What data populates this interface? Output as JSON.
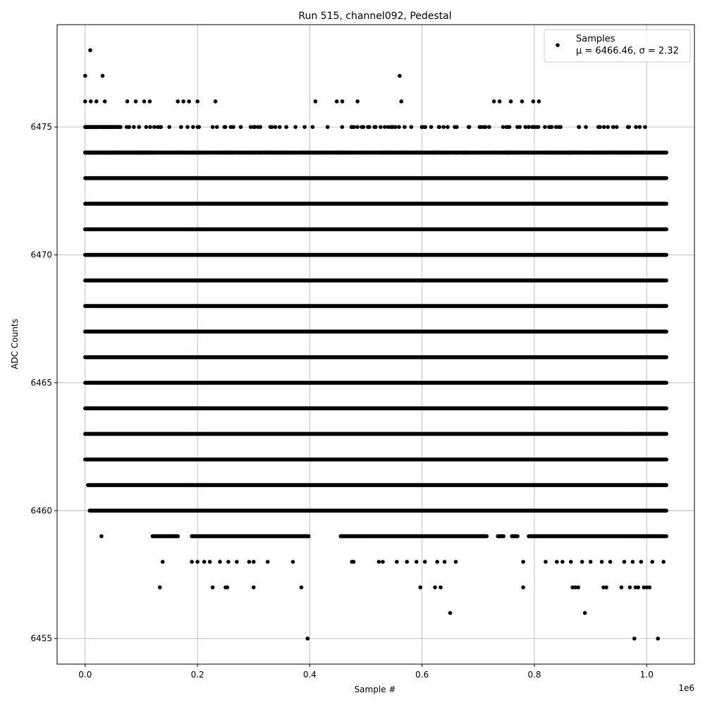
{
  "chart_data": {
    "type": "scatter",
    "title": "Run 515, channel092, Pedestal",
    "xlabel": "Sample #",
    "ylabel": "ADC Counts",
    "x_offset_label": "1e6",
    "xlim": [
      -50000,
      1085000
    ],
    "ylim": [
      6454,
      6479
    ],
    "x_ticks": [
      0.0,
      0.2,
      0.4,
      0.6,
      0.8,
      1.0
    ],
    "x_tick_labels": [
      "0.0",
      "0.2",
      "0.4",
      "0.6",
      "0.8",
      "1.0"
    ],
    "y_ticks": [
      6455,
      6460,
      6465,
      6470,
      6475
    ],
    "y_tick_labels": [
      "6455",
      "6460",
      "6465",
      "6470",
      "6475"
    ],
    "grid": true,
    "legend": {
      "placement": "top-right",
      "entries": [
        "Samples",
        "μ = 6466.46, σ = 2.32"
      ]
    },
    "marker_color": "#000000",
    "x_range_samples": [
      0,
      1035000
    ],
    "series": [
      {
        "name": "Samples",
        "mean": 6466.46,
        "std": 2.32,
        "dense_levels": [
          6460,
          6461,
          6462,
          6463,
          6464,
          6465,
          6466,
          6467,
          6468,
          6469,
          6470,
          6471,
          6472,
          6473,
          6474
        ],
        "sparse_points": [
          {
            "x": 0,
            "y": 6477
          },
          {
            "x": 9000,
            "y": 6478
          },
          {
            "x": 31000,
            "y": 6477
          },
          {
            "x": 560000,
            "y": 6477
          },
          {
            "x": 0,
            "y": 6476
          },
          {
            "x": 10000,
            "y": 6476
          },
          {
            "x": 20000,
            "y": 6476
          },
          {
            "x": 35000,
            "y": 6476
          },
          {
            "x": 75000,
            "y": 6476
          },
          {
            "x": 90000,
            "y": 6476
          },
          {
            "x": 105000,
            "y": 6476
          },
          {
            "x": 115000,
            "y": 6476
          },
          {
            "x": 165000,
            "y": 6476
          },
          {
            "x": 175000,
            "y": 6476
          },
          {
            "x": 185000,
            "y": 6476
          },
          {
            "x": 200000,
            "y": 6476
          },
          {
            "x": 232000,
            "y": 6476
          },
          {
            "x": 410000,
            "y": 6476
          },
          {
            "x": 448000,
            "y": 6476
          },
          {
            "x": 458000,
            "y": 6476
          },
          {
            "x": 485000,
            "y": 6476
          },
          {
            "x": 563000,
            "y": 6476
          },
          {
            "x": 728000,
            "y": 6476
          },
          {
            "x": 738000,
            "y": 6476
          },
          {
            "x": 758000,
            "y": 6476
          },
          {
            "x": 778000,
            "y": 6476
          },
          {
            "x": 798000,
            "y": 6476
          },
          {
            "x": 808000,
            "y": 6476
          },
          {
            "x": 396000,
            "y": 6455
          },
          {
            "x": 978000,
            "y": 6455
          },
          {
            "x": 1020000,
            "y": 6455
          },
          {
            "x": 650000,
            "y": 6456
          },
          {
            "x": 890000,
            "y": 6456
          },
          {
            "x": 133000,
            "y": 6457
          },
          {
            "x": 227000,
            "y": 6457
          },
          {
            "x": 250000,
            "y": 6457
          },
          {
            "x": 253000,
            "y": 6457
          },
          {
            "x": 300000,
            "y": 6457
          },
          {
            "x": 385000,
            "y": 6457
          },
          {
            "x": 597000,
            "y": 6457
          },
          {
            "x": 623000,
            "y": 6457
          },
          {
            "x": 633000,
            "y": 6457
          },
          {
            "x": 780000,
            "y": 6457
          },
          {
            "x": 868000,
            "y": 6457
          },
          {
            "x": 873000,
            "y": 6457
          },
          {
            "x": 878000,
            "y": 6457
          },
          {
            "x": 923000,
            "y": 6457
          },
          {
            "x": 928000,
            "y": 6457
          },
          {
            "x": 955000,
            "y": 6457
          },
          {
            "x": 970000,
            "y": 6457
          },
          {
            "x": 980000,
            "y": 6457
          },
          {
            "x": 985000,
            "y": 6457
          },
          {
            "x": 995000,
            "y": 6457
          },
          {
            "x": 1000000,
            "y": 6457
          },
          {
            "x": 1005000,
            "y": 6457
          },
          {
            "x": 138000,
            "y": 6458
          },
          {
            "x": 190000,
            "y": 6458
          },
          {
            "x": 200000,
            "y": 6458
          },
          {
            "x": 212000,
            "y": 6458
          },
          {
            "x": 222000,
            "y": 6458
          },
          {
            "x": 240000,
            "y": 6458
          },
          {
            "x": 255000,
            "y": 6458
          },
          {
            "x": 270000,
            "y": 6458
          },
          {
            "x": 292000,
            "y": 6458
          },
          {
            "x": 300000,
            "y": 6458
          },
          {
            "x": 325000,
            "y": 6458
          },
          {
            "x": 370000,
            "y": 6458
          },
          {
            "x": 475000,
            "y": 6458
          },
          {
            "x": 478000,
            "y": 6458
          },
          {
            "x": 523000,
            "y": 6458
          },
          {
            "x": 530000,
            "y": 6458
          },
          {
            "x": 555000,
            "y": 6458
          },
          {
            "x": 573000,
            "y": 6458
          },
          {
            "x": 590000,
            "y": 6458
          },
          {
            "x": 605000,
            "y": 6458
          },
          {
            "x": 627000,
            "y": 6458
          },
          {
            "x": 640000,
            "y": 6458
          },
          {
            "x": 660000,
            "y": 6458
          },
          {
            "x": 780000,
            "y": 6458
          },
          {
            "x": 820000,
            "y": 6458
          },
          {
            "x": 840000,
            "y": 6458
          },
          {
            "x": 850000,
            "y": 6458
          },
          {
            "x": 865000,
            "y": 6458
          },
          {
            "x": 885000,
            "y": 6458
          },
          {
            "x": 900000,
            "y": 6458
          },
          {
            "x": 920000,
            "y": 6458
          },
          {
            "x": 935000,
            "y": 6458
          },
          {
            "x": 960000,
            "y": 6458
          },
          {
            "x": 975000,
            "y": 6458
          },
          {
            "x": 990000,
            "y": 6458
          },
          {
            "x": 1010000,
            "y": 6458
          },
          {
            "x": 1030000,
            "y": 6458
          },
          {
            "x": 29000,
            "y": 6459
          }
        ],
        "level_6459_segments": [
          [
            120000,
            165000
          ],
          [
            190000,
            398000
          ],
          [
            455000,
            715000
          ],
          [
            735000,
            745000
          ],
          [
            760000,
            770000
          ],
          [
            790000,
            1035000
          ]
        ]
      }
    ]
  }
}
